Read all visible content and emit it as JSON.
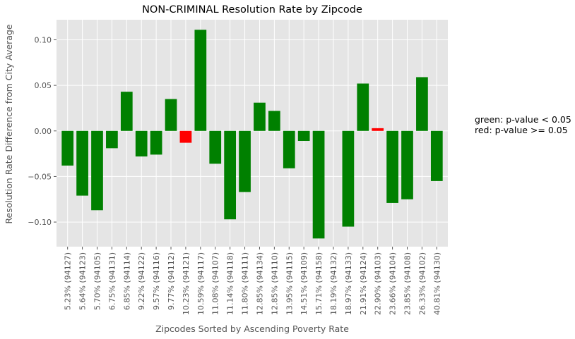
{
  "chart_data": {
    "type": "bar",
    "title": "NON-CRIMINAL Resolution Rate by Zipcode",
    "xlabel": "Zipcodes Sorted by Ascending Poverty Rate",
    "ylabel": "Resolution Rate Difference from City Average",
    "ylim": [
      -0.127,
      0.122
    ],
    "yticks": [
      0.1,
      0.05,
      0.0,
      -0.05,
      -0.1
    ],
    "ytick_labels": [
      "0.10",
      "0.05",
      "0.00",
      "−0.05",
      "−0.10"
    ],
    "grid": true,
    "background": "#e5e5e5",
    "categories": [
      "5.23% (94127)",
      "5.64% (94123)",
      "5.70% (94105)",
      "6.75% (94131)",
      "6.85% (94114)",
      "9.22% (94122)",
      "9.57% (94116)",
      "9.77% (94112)",
      "10.23% (94121)",
      "10.59% (94117)",
      "11.08% (94107)",
      "11.14% (94118)",
      "11.80% (94111)",
      "12.85% (94134)",
      "12.85% (94110)",
      "13.95% (94115)",
      "14.51% (94109)",
      "15.71% (94158)",
      "18.19% (94132)",
      "18.97% (94133)",
      "21.91% (94124)",
      "22.90% (94103)",
      "23.66% (94104)",
      "23.85% (94108)",
      "26.33% (94102)",
      "40.81% (94130)"
    ],
    "values": [
      -0.038,
      -0.071,
      -0.087,
      -0.019,
      0.043,
      -0.028,
      -0.026,
      0.035,
      -0.013,
      0.111,
      -0.036,
      -0.097,
      -0.067,
      0.031,
      0.022,
      -0.041,
      -0.011,
      -0.118,
      0.0,
      -0.105,
      0.052,
      0.003,
      -0.079,
      -0.075,
      0.059,
      -0.055
    ],
    "bar_colors": [
      "#008000",
      "#008000",
      "#008000",
      "#008000",
      "#008000",
      "#008000",
      "#008000",
      "#008000",
      "#ff0000",
      "#008000",
      "#008000",
      "#008000",
      "#008000",
      "#008000",
      "#008000",
      "#008000",
      "#008000",
      "#008000",
      "#008000",
      "#008000",
      "#008000",
      "#ff0000",
      "#008000",
      "#008000",
      "#008000",
      "#008000"
    ],
    "legend_position": "right",
    "annotations": [
      "green: p-value < 0.05",
      "red: p-value >= 0.05"
    ]
  }
}
